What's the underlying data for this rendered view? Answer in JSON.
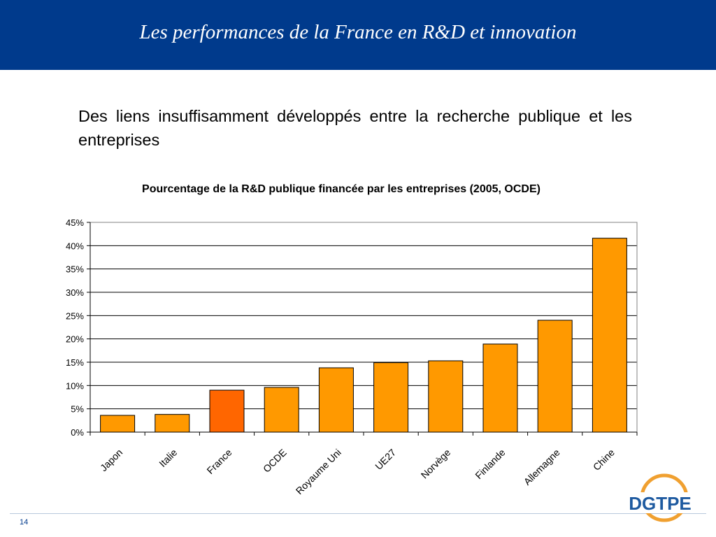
{
  "slide": {
    "title": "Les performances de la France en R&D et innovation",
    "subtitle": "Des liens insuffisamment développés entre la recherche publique et les entreprises",
    "page_number": "14",
    "logo_text": "DGTPE"
  },
  "colors": {
    "header": "#003a8c",
    "bar": "#ff9900",
    "bar_highlight": "#ff6600",
    "logo_blue": "#1e5aa0",
    "logo_orange": "#f0a030"
  },
  "chart_data": {
    "type": "bar",
    "title": "Pourcentage de la R&D publique financée par les entreprises (2005, OCDE)",
    "categories": [
      "Japon",
      "Italie",
      "France",
      "OCDE",
      "Royaume Uni",
      "UE27",
      "Norvège",
      "Finlande",
      "Allemagne",
      "Chine"
    ],
    "values": [
      3.6,
      3.8,
      9.0,
      9.6,
      13.8,
      14.9,
      15.3,
      18.9,
      24.0,
      41.6
    ],
    "highlight": "France",
    "ylim": [
      0,
      45
    ],
    "yticks": [
      0,
      5,
      10,
      15,
      20,
      25,
      30,
      35,
      40,
      45
    ],
    "ytick_labels": [
      "0%",
      "5%",
      "10%",
      "15%",
      "20%",
      "25%",
      "30%",
      "35%",
      "40%",
      "45%"
    ],
    "grid": true,
    "xlabel": "",
    "ylabel": ""
  }
}
